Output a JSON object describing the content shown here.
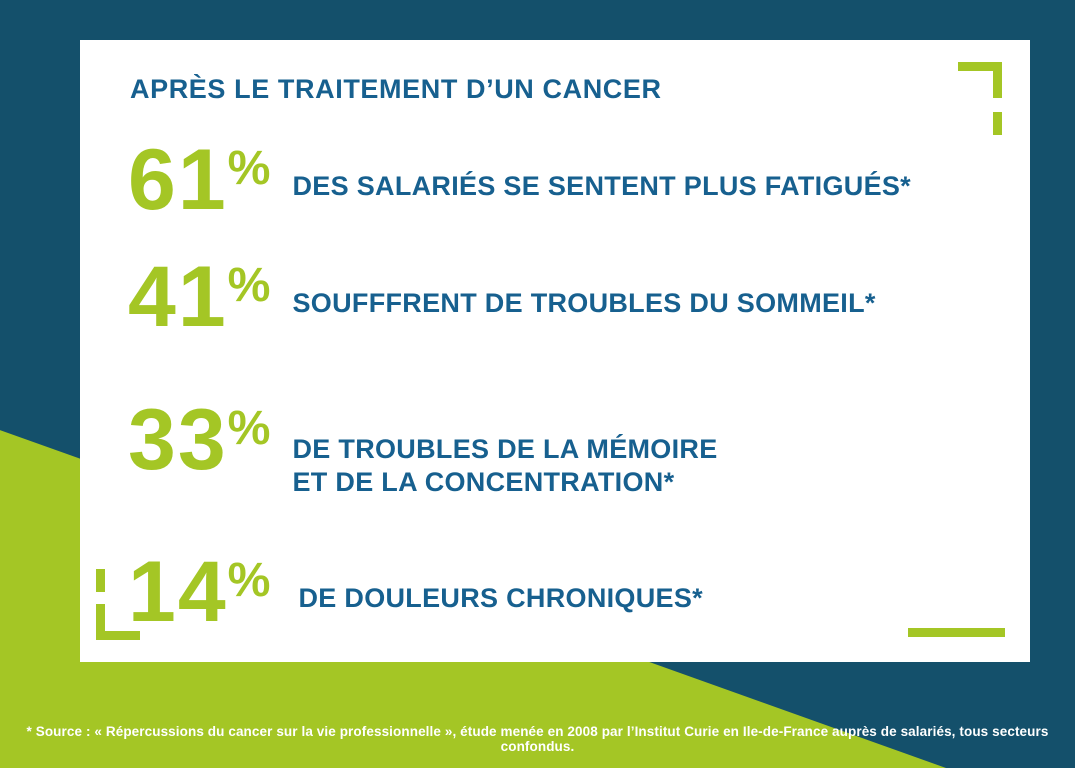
{
  "colors": {
    "background": "#14506B",
    "accent_green": "#A4C625",
    "text_blue": "#17608F",
    "card": "#FFFFFF"
  },
  "card": {
    "title": "APRÈS LE TRAITEMENT D’UN CANCER",
    "stats": [
      {
        "value": "61",
        "unit": "%",
        "label": "DES SALARIÉS SE SENTENT PLUS FATIGUÉS*",
        "label2": ""
      },
      {
        "value": "41",
        "unit": "%",
        "label": "SOUFFFRENT DE TROUBLES DU SOMMEIL*",
        "label2": ""
      },
      {
        "value": "33",
        "unit": "%",
        "label": "DE TROUBLES DE LA MÉMOIRE",
        "label2": "ET DE LA CONCENTRATION*"
      },
      {
        "value": "14",
        "unit": "%",
        "label": "DE DOULEURS CHRONIQUES*",
        "label2": ""
      }
    ]
  },
  "footer": {
    "source": "* Source : « Répercussions du cancer sur la vie professionnelle », étude menée en 2008 par l’Institut Curie en Ile-de-France auprès de salariés, tous secteurs confondus."
  },
  "chart_data": {
    "type": "table",
    "title": "APRÈS LE TRAITEMENT D’UN CANCER",
    "categories": [
      "DES SALARIÉS SE SENTENT PLUS FATIGUÉS*",
      "SOUFFFRENT DE TROUBLES DU SOMMEIL*",
      "DE TROUBLES DE LA MÉMOIRE ET DE LA CONCENTRATION*",
      "DE DOULEURS CHRONIQUES*"
    ],
    "values": [
      61,
      41,
      33,
      14
    ],
    "unit": "%",
    "source": "* Source : « Répercussions du cancer sur la vie professionnelle », étude menée en 2008 par l’Institut Curie en Ile-de-France auprès de salariés, tous secteurs confondus."
  }
}
